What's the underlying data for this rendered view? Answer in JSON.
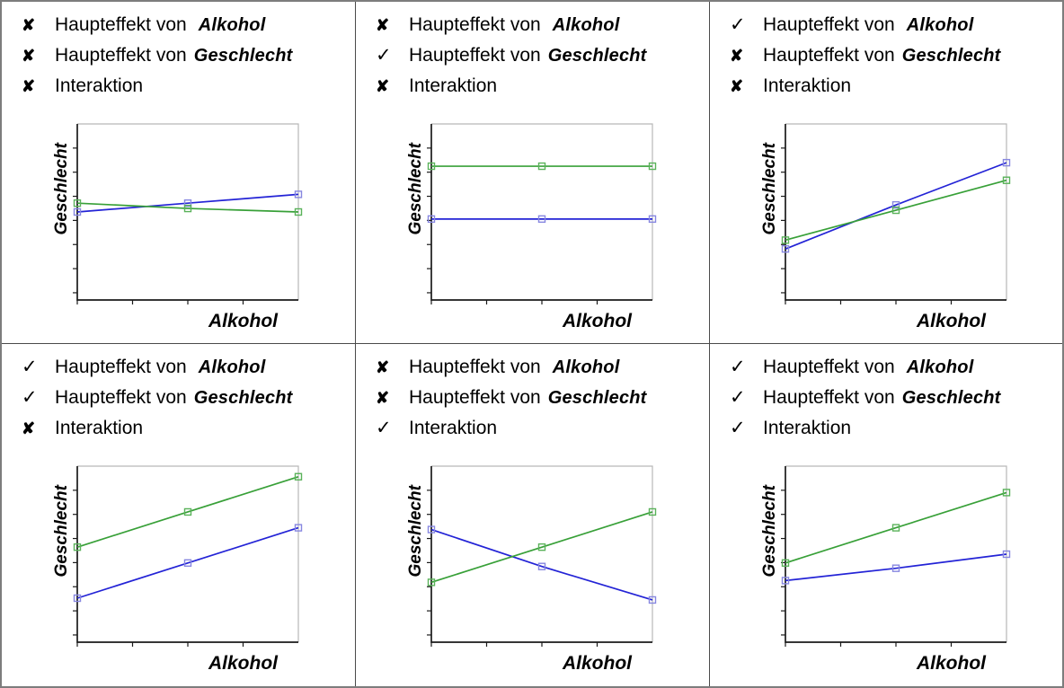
{
  "labels": {
    "effect_prefix": "Haupteffekt von",
    "factor_alkohol": "Alkohol",
    "factor_geschlecht": "Geschlecht",
    "interaction": "Interaktion",
    "x_axis": "Alkohol",
    "y_axis": "Geschlecht"
  },
  "marks": {
    "yes": "✓",
    "no": "✘"
  },
  "colors": {
    "line_blue": "#2323d6",
    "line_green": "#38a038",
    "marker_blue": "#8787e0",
    "marker_green": "#5ab25a",
    "axis": "#1a1a1a",
    "frame": "#b8b8b8",
    "panel_border": "#4a4a4a",
    "outer_border": "#7d7d7d",
    "text": "#000000"
  },
  "panels": [
    {
      "name": "no-effects",
      "rows": [
        {
          "mark": "✘",
          "prefix": "Haupteffekt von",
          "factor": "Alkohol"
        },
        {
          "mark": "✘",
          "prefix": "Haupteffekt von",
          "factor": "Geschlecht"
        },
        {
          "mark": "✘",
          "prefix": "Interaktion",
          "factor": ""
        }
      ]
    },
    {
      "name": "main-effect-geschlecht-only",
      "rows": [
        {
          "mark": "✘",
          "prefix": "Haupteffekt von",
          "factor": "Alkohol"
        },
        {
          "mark": "✓",
          "prefix": "Haupteffekt von",
          "factor": "Geschlecht"
        },
        {
          "mark": "✘",
          "prefix": "Interaktion",
          "factor": ""
        }
      ]
    },
    {
      "name": "main-effect-alkohol-only",
      "rows": [
        {
          "mark": "✓",
          "prefix": "Haupteffekt von",
          "factor": "Alkohol"
        },
        {
          "mark": "✘",
          "prefix": "Haupteffekt von",
          "factor": "Geschlecht"
        },
        {
          "mark": "✘",
          "prefix": "Interaktion",
          "factor": ""
        }
      ]
    },
    {
      "name": "both-main-effects-no-interaction",
      "rows": [
        {
          "mark": "✓",
          "prefix": "Haupteffekt von",
          "factor": "Alkohol"
        },
        {
          "mark": "✓",
          "prefix": "Haupteffekt von",
          "factor": "Geschlecht"
        },
        {
          "mark": "✘",
          "prefix": "Interaktion",
          "factor": ""
        }
      ]
    },
    {
      "name": "interaction-only",
      "rows": [
        {
          "mark": "✘",
          "prefix": "Haupteffekt von",
          "factor": "Alkohol"
        },
        {
          "mark": "✘",
          "prefix": "Haupteffekt von",
          "factor": "Geschlecht"
        },
        {
          "mark": "✓",
          "prefix": "Interaktion",
          "factor": ""
        }
      ]
    },
    {
      "name": "all-effects",
      "rows": [
        {
          "mark": "✓",
          "prefix": "Haupteffekt von",
          "factor": "Alkohol"
        },
        {
          "mark": "✓",
          "prefix": "Haupteffekt von",
          "factor": "Geschlecht"
        },
        {
          "mark": "✓",
          "prefix": "Interaktion",
          "factor": ""
        }
      ]
    }
  ],
  "chart_data": [
    {
      "type": "line",
      "panel": "row1-col1",
      "effects": {
        "haupteffekt_alkohol": false,
        "haupteffekt_geschlecht": false,
        "interaktion": false
      },
      "xlabel": "Alkohol",
      "ylabel": "Geschlecht",
      "x": [
        1,
        2,
        3
      ],
      "ylim": [
        0,
        100
      ],
      "series": [
        {
          "name": "blau",
          "color": "#2323d6",
          "marker_color": "#8787e0",
          "marker": "open-square",
          "values": [
            50,
            55,
            60
          ]
        },
        {
          "name": "gruen",
          "color": "#38a038",
          "marker_color": "#5ab25a",
          "marker": "open-square",
          "values": [
            55,
            52,
            50
          ]
        }
      ],
      "axes": {
        "x_ticks": 4,
        "y_ticks": 7,
        "tick_labels": false,
        "grid": false
      }
    },
    {
      "type": "line",
      "panel": "row1-col2",
      "effects": {
        "haupteffekt_alkohol": false,
        "haupteffekt_geschlecht": true,
        "interaktion": false
      },
      "xlabel": "Alkohol",
      "ylabel": "Geschlecht",
      "x": [
        1,
        2,
        3
      ],
      "ylim": [
        0,
        100
      ],
      "series": [
        {
          "name": "blau",
          "color": "#2323d6",
          "marker_color": "#8787e0",
          "marker": "open-square",
          "values": [
            46,
            46,
            46
          ]
        },
        {
          "name": "gruen",
          "color": "#38a038",
          "marker_color": "#5ab25a",
          "marker": "open-square",
          "values": [
            76,
            76,
            76
          ]
        }
      ],
      "axes": {
        "x_ticks": 4,
        "y_ticks": 7,
        "tick_labels": false,
        "grid": false
      }
    },
    {
      "type": "line",
      "panel": "row1-col3",
      "effects": {
        "haupteffekt_alkohol": true,
        "haupteffekt_geschlecht": false,
        "interaktion": false
      },
      "xlabel": "Alkohol",
      "ylabel": "Geschlecht",
      "x": [
        1,
        2,
        3
      ],
      "ylim": [
        0,
        100
      ],
      "series": [
        {
          "name": "blau",
          "color": "#2323d6",
          "marker_color": "#8787e0",
          "marker": "open-square",
          "values": [
            29,
            54,
            78
          ]
        },
        {
          "name": "gruen",
          "color": "#38a038",
          "marker_color": "#5ab25a",
          "marker": "open-square",
          "values": [
            34,
            51,
            68
          ]
        }
      ],
      "axes": {
        "x_ticks": 4,
        "y_ticks": 7,
        "tick_labels": false,
        "grid": false
      }
    },
    {
      "type": "line",
      "panel": "row2-col1",
      "effects": {
        "haupteffekt_alkohol": true,
        "haupteffekt_geschlecht": true,
        "interaktion": false
      },
      "xlabel": "Alkohol",
      "ylabel": "Geschlecht",
      "x": [
        1,
        2,
        3
      ],
      "ylim": [
        0,
        100
      ],
      "series": [
        {
          "name": "blau",
          "color": "#2323d6",
          "marker_color": "#8787e0",
          "marker": "open-square",
          "values": [
            25,
            45,
            65
          ]
        },
        {
          "name": "gruen",
          "color": "#38a038",
          "marker_color": "#5ab25a",
          "marker": "open-square",
          "values": [
            54,
            74,
            94
          ]
        }
      ],
      "axes": {
        "x_ticks": 4,
        "y_ticks": 7,
        "tick_labels": false,
        "grid": false
      }
    },
    {
      "type": "line",
      "panel": "row2-col2",
      "effects": {
        "haupteffekt_alkohol": false,
        "haupteffekt_geschlecht": false,
        "interaktion": true
      },
      "xlabel": "Alkohol",
      "ylabel": "Geschlecht",
      "x": [
        1,
        2,
        3
      ],
      "ylim": [
        0,
        100
      ],
      "series": [
        {
          "name": "blau",
          "color": "#2323d6",
          "marker_color": "#8787e0",
          "marker": "open-square",
          "values": [
            64,
            43,
            24
          ]
        },
        {
          "name": "gruen",
          "color": "#38a038",
          "marker_color": "#5ab25a",
          "marker": "open-square",
          "values": [
            34,
            54,
            74
          ]
        }
      ],
      "axes": {
        "x_ticks": 4,
        "y_ticks": 7,
        "tick_labels": false,
        "grid": false
      }
    },
    {
      "type": "line",
      "panel": "row2-col3",
      "effects": {
        "haupteffekt_alkohol": true,
        "haupteffekt_geschlecht": true,
        "interaktion": true
      },
      "xlabel": "Alkohol",
      "ylabel": "Geschlecht",
      "x": [
        1,
        2,
        3
      ],
      "ylim": [
        0,
        100
      ],
      "series": [
        {
          "name": "blau",
          "color": "#2323d6",
          "marker_color": "#8787e0",
          "marker": "open-square",
          "values": [
            35,
            42,
            50
          ]
        },
        {
          "name": "gruen",
          "color": "#38a038",
          "marker_color": "#5ab25a",
          "marker": "open-square",
          "values": [
            45,
            65,
            85
          ]
        }
      ],
      "axes": {
        "x_ticks": 4,
        "y_ticks": 7,
        "tick_labels": false,
        "grid": false
      }
    }
  ]
}
